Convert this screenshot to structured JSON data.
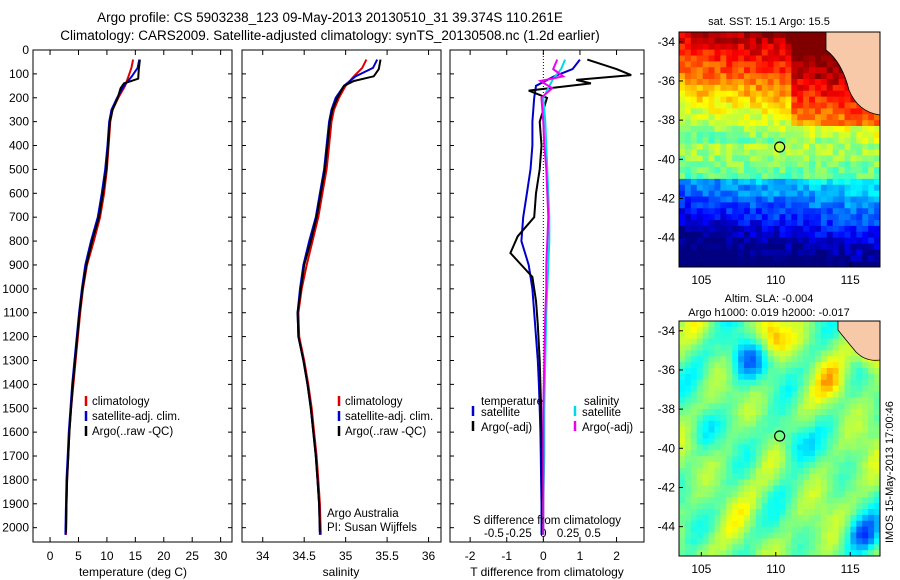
{
  "header": {
    "title_line1": "Argo profile: CS 5903238_123 09-May-2013 20130510_31 39.374S 110.261E",
    "title_line2": "Climatology: CARS2009. Satellite-adjusted climatology: synTS_20130508.nc (1.2d earlier)"
  },
  "colors": {
    "climatology": "#dd0000",
    "satellite": "#0000cc",
    "argo": "#000000",
    "salinity_satellite": "#00d8e8",
    "salinity_argo": "#ee00ee"
  },
  "depth_axis": {
    "ticks": [
      0,
      100,
      200,
      300,
      400,
      500,
      600,
      700,
      800,
      900,
      1000,
      1100,
      1200,
      1300,
      1400,
      1500,
      1600,
      1700,
      1800,
      1900,
      2000
    ],
    "ylim": [
      0,
      2060
    ]
  },
  "legend": {
    "climatology": "climatology",
    "satellite_adj": "satellite-adj. clim.",
    "argo_raw": "Argo(..raw -QC)",
    "diff_temperature": "temperature",
    "diff_salinity": "salinity",
    "diff_satellite": "satellite",
    "diff_argo": "Argo(-adj)"
  },
  "credits": {
    "line1": "Argo Australia",
    "line2": "PI: Susan Wijffels"
  },
  "chart_data": [
    {
      "type": "line",
      "xlabel": "temperature (deg C)",
      "ylabel": "",
      "xlim": [
        -3,
        32
      ],
      "xticks": [
        0,
        5,
        10,
        15,
        20,
        25,
        30
      ],
      "series": [
        {
          "name": "climatology",
          "color": "#dd0000",
          "points": [
            [
              14.6,
              40
            ],
            [
              14.3,
              75
            ],
            [
              13.8,
              110
            ],
            [
              13.2,
              150
            ],
            [
              12.0,
              200
            ],
            [
              11.0,
              250
            ],
            [
              10.6,
              300
            ],
            [
              10.3,
              400
            ],
            [
              10.0,
              500
            ],
            [
              9.5,
              600
            ],
            [
              8.8,
              700
            ],
            [
              7.7,
              800
            ],
            [
              6.5,
              900
            ],
            [
              5.8,
              1000
            ],
            [
              5.3,
              1100
            ],
            [
              4.9,
              1200
            ],
            [
              4.5,
              1300
            ],
            [
              4.1,
              1400
            ],
            [
              3.7,
              1500
            ],
            [
              3.4,
              1600
            ],
            [
              3.2,
              1700
            ],
            [
              3.0,
              1800
            ],
            [
              2.9,
              1900
            ],
            [
              2.8,
              2030
            ]
          ]
        },
        {
          "name": "satellite-adj. clim.",
          "color": "#0000cc",
          "points": [
            [
              15.7,
              40
            ],
            [
              15.4,
              75
            ],
            [
              14.4,
              110
            ],
            [
              13.0,
              150
            ],
            [
              11.8,
              200
            ],
            [
              10.8,
              250
            ],
            [
              10.4,
              300
            ],
            [
              10.1,
              400
            ],
            [
              9.7,
              500
            ],
            [
              9.1,
              600
            ],
            [
              8.4,
              700
            ],
            [
              7.2,
              800
            ],
            [
              6.2,
              900
            ],
            [
              5.6,
              1000
            ],
            [
              5.1,
              1100
            ],
            [
              4.7,
              1200
            ],
            [
              4.3,
              1300
            ],
            [
              3.9,
              1400
            ],
            [
              3.6,
              1500
            ],
            [
              3.3,
              1600
            ],
            [
              3.1,
              1700
            ],
            [
              2.9,
              1800
            ],
            [
              2.8,
              1900
            ],
            [
              2.7,
              2030
            ]
          ]
        },
        {
          "name": "Argo(..raw -QC)",
          "color": "#000000",
          "points": [
            [
              15.8,
              40
            ],
            [
              15.6,
              80
            ],
            [
              15.5,
              120
            ],
            [
              13.0,
              140
            ],
            [
              12.4,
              160
            ],
            [
              11.9,
              200
            ],
            [
              11.0,
              250
            ],
            [
              10.5,
              300
            ],
            [
              10.2,
              400
            ],
            [
              9.9,
              500
            ],
            [
              9.3,
              600
            ],
            [
              8.6,
              700
            ],
            [
              7.4,
              800
            ],
            [
              6.4,
              900
            ],
            [
              5.7,
              1000
            ],
            [
              5.2,
              1100
            ],
            [
              4.8,
              1200
            ],
            [
              4.4,
              1300
            ],
            [
              4.0,
              1400
            ],
            [
              3.7,
              1500
            ],
            [
              3.4,
              1600
            ],
            [
              3.2,
              1700
            ],
            [
              3.0,
              1800
            ],
            [
              2.9,
              1900
            ],
            [
              2.8,
              2020
            ]
          ]
        }
      ]
    },
    {
      "type": "line",
      "xlabel": "salinity",
      "ylabel": "",
      "xlim": [
        33.75,
        36.15
      ],
      "xticks": [
        34,
        34.5,
        35,
        35.5,
        36
      ],
      "series": [
        {
          "name": "climatology",
          "color": "#dd0000",
          "points": [
            [
              35.25,
              40
            ],
            [
              35.2,
              75
            ],
            [
              35.1,
              110
            ],
            [
              35.0,
              150
            ],
            [
              34.92,
              200
            ],
            [
              34.86,
              250
            ],
            [
              34.83,
              300
            ],
            [
              34.8,
              400
            ],
            [
              34.77,
              500
            ],
            [
              34.72,
              600
            ],
            [
              34.67,
              700
            ],
            [
              34.6,
              800
            ],
            [
              34.53,
              900
            ],
            [
              34.47,
              1000
            ],
            [
              34.43,
              1100
            ],
            [
              34.44,
              1200
            ],
            [
              34.5,
              1300
            ],
            [
              34.55,
              1400
            ],
            [
              34.59,
              1500
            ],
            [
              34.62,
              1600
            ],
            [
              34.65,
              1700
            ],
            [
              34.67,
              1800
            ],
            [
              34.69,
              1900
            ],
            [
              34.7,
              2030
            ]
          ]
        },
        {
          "name": "satellite-adj. clim.",
          "color": "#0000cc",
          "points": [
            [
              35.38,
              40
            ],
            [
              35.33,
              75
            ],
            [
              35.12,
              110
            ],
            [
              34.98,
              150
            ],
            [
              34.88,
              200
            ],
            [
              34.83,
              250
            ],
            [
              34.8,
              300
            ],
            [
              34.77,
              400
            ],
            [
              34.74,
              500
            ],
            [
              34.69,
              600
            ],
            [
              34.64,
              700
            ],
            [
              34.56,
              800
            ],
            [
              34.49,
              900
            ],
            [
              34.45,
              1000
            ],
            [
              34.42,
              1100
            ],
            [
              34.43,
              1200
            ],
            [
              34.49,
              1300
            ],
            [
              34.54,
              1400
            ],
            [
              34.58,
              1500
            ],
            [
              34.61,
              1600
            ],
            [
              34.64,
              1700
            ],
            [
              34.66,
              1800
            ],
            [
              34.68,
              1900
            ],
            [
              34.69,
              2030
            ]
          ]
        },
        {
          "name": "Argo(..raw -QC)",
          "color": "#000000",
          "points": [
            [
              35.42,
              40
            ],
            [
              35.4,
              80
            ],
            [
              35.34,
              110
            ],
            [
              35.1,
              130
            ],
            [
              34.98,
              150
            ],
            [
              34.9,
              200
            ],
            [
              34.84,
              250
            ],
            [
              34.81,
              300
            ],
            [
              34.78,
              400
            ],
            [
              34.75,
              500
            ],
            [
              34.7,
              600
            ],
            [
              34.65,
              700
            ],
            [
              34.58,
              800
            ],
            [
              34.5,
              900
            ],
            [
              34.46,
              1000
            ],
            [
              34.42,
              1100
            ],
            [
              34.43,
              1200
            ],
            [
              34.49,
              1300
            ],
            [
              34.54,
              1400
            ],
            [
              34.58,
              1500
            ],
            [
              34.61,
              1600
            ],
            [
              34.64,
              1700
            ],
            [
              34.66,
              1800
            ],
            [
              34.68,
              1900
            ],
            [
              34.69,
              2020
            ]
          ]
        }
      ]
    },
    {
      "type": "line",
      "xlabel": "T difference from climatology",
      "x2label": "S difference from climatology",
      "xlim": [
        -2.55,
        2.75
      ],
      "xticks": [
        -2,
        -1,
        0,
        1,
        2
      ],
      "x2ticks": [
        -0.5,
        -0.25,
        0,
        0.25,
        0.5
      ],
      "x2tick_labels": [
        "-0.5",
        "-0.25",
        "0",
        "0.25",
        "0.5"
      ],
      "series": [
        {
          "name": "satellite (temperature)",
          "color": "#0000cc",
          "points": [
            [
              1.0,
              40
            ],
            [
              0.8,
              80
            ],
            [
              0.3,
              110
            ],
            [
              -0.2,
              150
            ],
            [
              -0.25,
              200
            ],
            [
              -0.3,
              300
            ],
            [
              -0.3,
              400
            ],
            [
              -0.35,
              500
            ],
            [
              -0.45,
              600
            ],
            [
              -0.55,
              700
            ],
            [
              -0.6,
              800
            ],
            [
              -0.4,
              900
            ],
            [
              -0.3,
              1000
            ],
            [
              -0.25,
              1100
            ],
            [
              -0.2,
              1200
            ],
            [
              -0.15,
              1300
            ],
            [
              -0.12,
              1400
            ],
            [
              -0.1,
              1500
            ],
            [
              -0.08,
              1600
            ],
            [
              -0.07,
              1700
            ],
            [
              -0.06,
              1800
            ],
            [
              -0.05,
              1900
            ],
            [
              -0.05,
              2030
            ]
          ]
        },
        {
          "name": "Argo(-adj) (temperature)",
          "color": "#000000",
          "points": [
            [
              1.2,
              40
            ],
            [
              2.0,
              80
            ],
            [
              2.4,
              105
            ],
            [
              0.9,
              125
            ],
            [
              1.3,
              140
            ],
            [
              -0.4,
              170
            ],
            [
              0.1,
              200
            ],
            [
              -0.1,
              300
            ],
            [
              -0.05,
              400
            ],
            [
              -0.1,
              500
            ],
            [
              -0.2,
              600
            ],
            [
              -0.25,
              700
            ],
            [
              -0.7,
              780
            ],
            [
              -0.9,
              850
            ],
            [
              -0.6,
              900
            ],
            [
              -0.3,
              950
            ],
            [
              -0.2,
              1050
            ],
            [
              -0.15,
              1150
            ],
            [
              -0.1,
              1300
            ],
            [
              -0.06,
              1500
            ],
            [
              -0.04,
              1700
            ],
            [
              -0.03,
              1900
            ],
            [
              -0.03,
              2030
            ]
          ]
        },
        {
          "name": "satellite (salinity)",
          "color": "#00d8e8",
          "points": [
            [
              0.22,
              40
            ],
            [
              0.18,
              80
            ],
            [
              0.1,
              120
            ],
            [
              0.05,
              160
            ],
            [
              0.0,
              200
            ],
            [
              0.02,
              300
            ],
            [
              0.03,
              400
            ],
            [
              0.04,
              500
            ],
            [
              0.05,
              600
            ],
            [
              0.06,
              700
            ],
            [
              0.06,
              800
            ],
            [
              0.05,
              900
            ],
            [
              0.04,
              1000
            ],
            [
              0.03,
              1100
            ],
            [
              0.02,
              1300
            ],
            [
              0.01,
              1500
            ],
            [
              0.01,
              1700
            ],
            [
              0.0,
              1900
            ],
            [
              0.0,
              2030
            ]
          ]
        },
        {
          "name": "Argo(-adj) (salinity)",
          "color": "#ee00ee",
          "points": [
            [
              0.14,
              40
            ],
            [
              0.1,
              80
            ],
            [
              0.2,
              110
            ],
            [
              -0.03,
              130
            ],
            [
              0.09,
              160
            ],
            [
              -0.02,
              200
            ],
            [
              0.0,
              300
            ],
            [
              0.01,
              400
            ],
            [
              0.03,
              500
            ],
            [
              0.04,
              600
            ],
            [
              0.05,
              700
            ],
            [
              0.04,
              800
            ],
            [
              0.03,
              900
            ],
            [
              0.03,
              1000
            ],
            [
              0.02,
              1100
            ],
            [
              0.01,
              1300
            ],
            [
              0.0,
              1500
            ],
            [
              0.0,
              1700
            ],
            [
              0.0,
              1900
            ],
            [
              0.0,
              2030
            ]
          ]
        }
      ]
    },
    {
      "type": "heatmap",
      "title": "sat. SST: 15.1 Argo: 15.5",
      "xticks": [
        105,
        110,
        115
      ],
      "yticks": [
        -34,
        -36,
        -38,
        -40,
        -42,
        -44
      ],
      "xlim": [
        103.5,
        117
      ],
      "ylim": [
        -45.5,
        -33.5
      ],
      "argo_marker": {
        "lon": 110.261,
        "lat": -39.374
      }
    },
    {
      "type": "heatmap",
      "title": "Altim. SLA: -0.004",
      "subtitle": "Argo h1000: 0.019 h2000: -0.017",
      "xticks": [
        105,
        110,
        115
      ],
      "yticks": [
        -34,
        -36,
        -38,
        -40,
        -42,
        -44
      ],
      "xlim": [
        103.5,
        117
      ],
      "ylim": [
        -45.5,
        -33.5
      ],
      "argo_marker": {
        "lon": 110.261,
        "lat": -39.374
      }
    }
  ],
  "watermark": "IMOS 15-May-2013 17:00:46"
}
